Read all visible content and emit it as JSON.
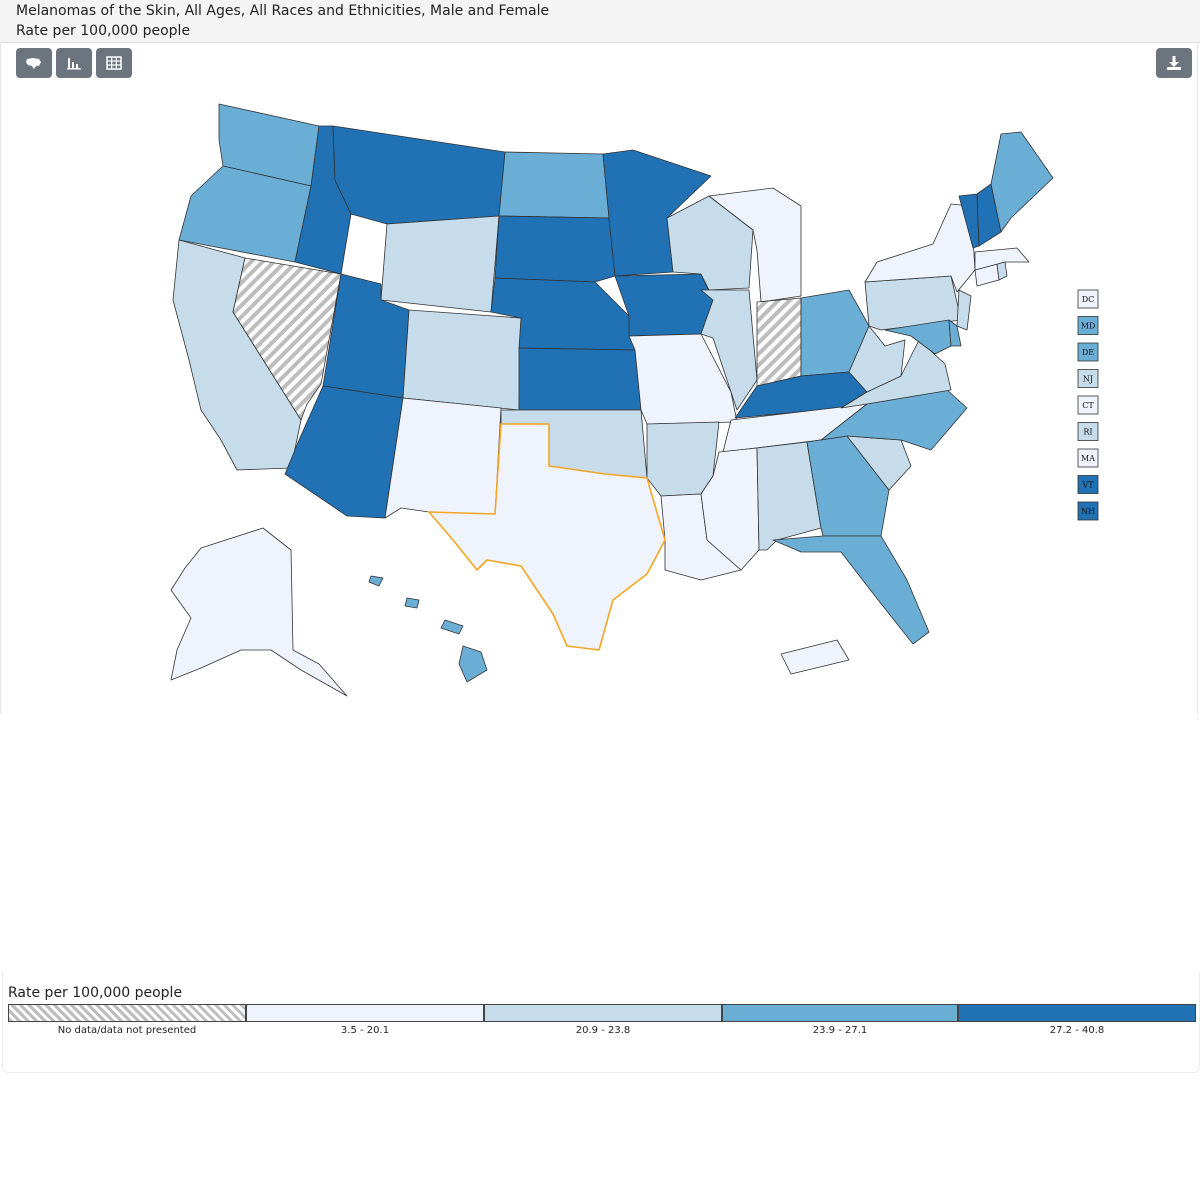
{
  "header": {
    "title": "Melanomas of the Skin, All Ages, All Races and Ethnicities, Male and Female",
    "subtitle": "Rate per 100,000 people"
  },
  "toolbar": {
    "buttons": [
      {
        "icon": "us-map-icon"
      },
      {
        "icon": "bar-chart-icon"
      },
      {
        "icon": "table-icon"
      }
    ],
    "download_icon": "download-icon"
  },
  "colors": {
    "nodata": "#dcdcdc",
    "c1": "#eef3fc",
    "c2": "#c6dcea",
    "c3": "#6aaed6",
    "c4": "#2171b5",
    "highlight": "#f5a623",
    "button": "#6c757d"
  },
  "map": {
    "states": [
      {
        "abbr": "WA",
        "category": 3
      },
      {
        "abbr": "OR",
        "category": 3
      },
      {
        "abbr": "CA",
        "category": 2
      },
      {
        "abbr": "NV",
        "category": 0
      },
      {
        "abbr": "ID",
        "category": 4
      },
      {
        "abbr": "MT",
        "category": 4
      },
      {
        "abbr": "WY",
        "category": 2
      },
      {
        "abbr": "UT",
        "category": 4
      },
      {
        "abbr": "AZ",
        "category": 4
      },
      {
        "abbr": "CO",
        "category": 2
      },
      {
        "abbr": "NM",
        "category": 1
      },
      {
        "abbr": "ND",
        "category": 3
      },
      {
        "abbr": "SD",
        "category": 4
      },
      {
        "abbr": "NE",
        "category": 4
      },
      {
        "abbr": "KS",
        "category": 4
      },
      {
        "abbr": "OK",
        "category": 2
      },
      {
        "abbr": "TX",
        "category": 1,
        "highlighted": true
      },
      {
        "abbr": "MN",
        "category": 4
      },
      {
        "abbr": "IA",
        "category": 4
      },
      {
        "abbr": "MO",
        "category": 1
      },
      {
        "abbr": "AR",
        "category": 2
      },
      {
        "abbr": "LA",
        "category": 1
      },
      {
        "abbr": "WI",
        "category": 2
      },
      {
        "abbr": "IL",
        "category": 2
      },
      {
        "abbr": "MI",
        "category": 1
      },
      {
        "abbr": "IN",
        "category": 0
      },
      {
        "abbr": "OH",
        "category": 3
      },
      {
        "abbr": "KY",
        "category": 4
      },
      {
        "abbr": "TN",
        "category": 1
      },
      {
        "abbr": "MS",
        "category": 1
      },
      {
        "abbr": "AL",
        "category": 2
      },
      {
        "abbr": "GA",
        "category": 3
      },
      {
        "abbr": "FL",
        "category": 3
      },
      {
        "abbr": "SC",
        "category": 2
      },
      {
        "abbr": "NC",
        "category": 3
      },
      {
        "abbr": "VA",
        "category": 2
      },
      {
        "abbr": "WV",
        "category": 2
      },
      {
        "abbr": "PA",
        "category": 2
      },
      {
        "abbr": "NY",
        "category": 1
      },
      {
        "abbr": "VT",
        "category": 4
      },
      {
        "abbr": "NH",
        "category": 4
      },
      {
        "abbr": "ME",
        "category": 3
      },
      {
        "abbr": "AK",
        "category": 1
      },
      {
        "abbr": "HI",
        "category": 3
      },
      {
        "abbr": "PR",
        "category": 1
      }
    ],
    "small_states": [
      {
        "abbr": "DC",
        "category": 1
      },
      {
        "abbr": "MD",
        "category": 3
      },
      {
        "abbr": "DE",
        "category": 3
      },
      {
        "abbr": "NJ",
        "category": 2
      },
      {
        "abbr": "CT",
        "category": 1
      },
      {
        "abbr": "RI",
        "category": 2
      },
      {
        "abbr": "MA",
        "category": 1
      },
      {
        "abbr": "VT",
        "category": 4
      },
      {
        "abbr": "NH",
        "category": 4
      }
    ]
  },
  "legend": {
    "title": "Rate per 100,000 people",
    "items": [
      {
        "label": "No data/data not presented",
        "category": 0
      },
      {
        "label": "3.5 - 20.1",
        "category": 1
      },
      {
        "label": "20.9 - 23.8",
        "category": 2
      },
      {
        "label": "23.9 - 27.1",
        "category": 3
      },
      {
        "label": "27.2 - 40.8",
        "category": 4
      }
    ]
  }
}
